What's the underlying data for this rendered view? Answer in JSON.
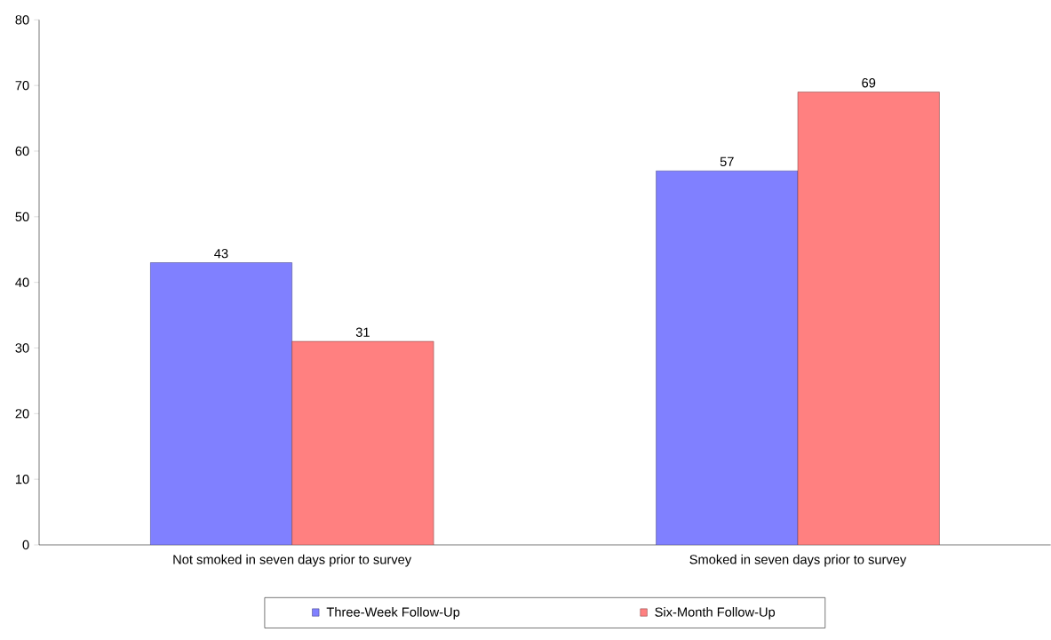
{
  "chart_data": {
    "type": "bar",
    "categories": [
      "Not smoked in seven days prior to survey",
      "Smoked in seven days prior to survey"
    ],
    "series": [
      {
        "name": "Three-Week Follow-Up",
        "color": "#8080ff",
        "values": [
          43,
          57
        ]
      },
      {
        "name": "Six-Month Follow-Up",
        "color": "#ff8080",
        "values": [
          31,
          69
        ]
      }
    ],
    "ylim": [
      0,
      80
    ],
    "yticks": [
      0,
      10,
      20,
      30,
      40,
      50,
      60,
      70,
      80
    ],
    "data_labels": true,
    "legend": "bottom"
  }
}
